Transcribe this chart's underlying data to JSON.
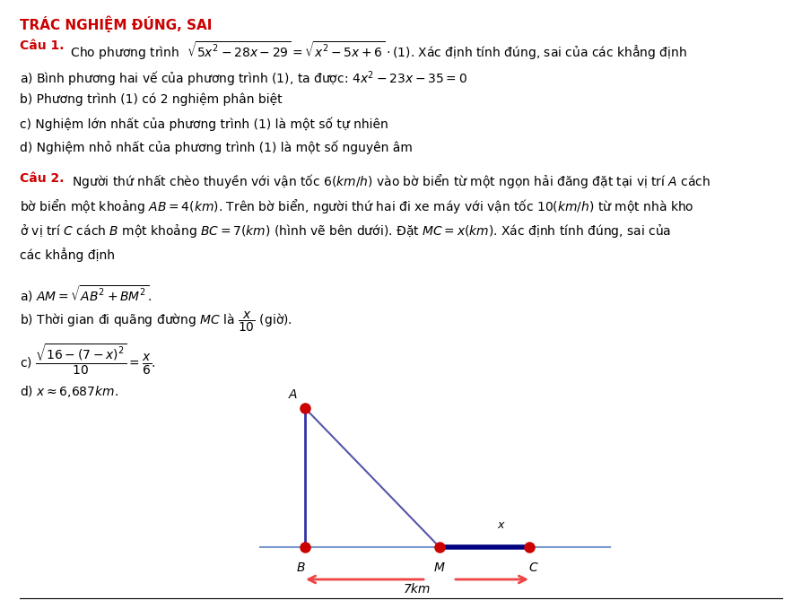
{
  "title": "TRÁC NGHIỆM ĐÚNG, SAI",
  "title_color": "#CC0000",
  "title_fontsize": 11,
  "bg_color": "#FFFFFF",
  "body_fontsize": 10,
  "red_label_color": "#CC0000",
  "câu1_label": "Câu 1.",
  "câu1_text": " Cho phương trình  $\\sqrt{5x^2-28x-29}=\\sqrt{x^2-5x+6}\\cdot(1)$. Xác định tính đúng, sai của các khẳng định",
  "câu1_a": "a) Bình phương hai vế của phương trình (1), ta được: $4x^2-23x-35=0$",
  "câu1_b": "b) Phương trình (1) có 2 nghiệm phân biệt",
  "câu1_c": "c) Nghiệm lớn nhất của phương trình (1) là một số tự nhiên",
  "câu1_d": "d) Nghiệm nhỏ nhất của phương trình (1) là một số nguyên âm",
  "câu2_label": "Câu 2.",
  "câu2_text1": " Người thứ nhất chèo thuyền với vận tốc $6(km/h)$ vào bờ biển từ một ngọn hải đăng đặt tại vị trí $A$ cách",
  "câu2_text2": "bờ biển một khoảng $AB=4(km)$. Trên bờ biển, người thứ hai đi xe máy với vận tốc $10(km/h)$ từ một nhà kho",
  "câu2_text3": "ở vị trí $C$ cách $B$ một khoảng $BC=7(km)$ (hình vẽ bên dưới). Đặt $MC=x(km)$. Xác định tính đúng, sai của",
  "câu2_text4": "các khẳng định",
  "câu2_a": "a) $AM=\\sqrt{AB^2+BM^2}$.",
  "câu2_b": "b) Thời gian đi quãng đường $MC$ là $\\dfrac{x}{10}$ (giờ).",
  "câu2_c": "c) $\\dfrac{\\sqrt{16-(7-x)^2}}{10}=\\dfrac{x}{6}$.",
  "câu2_d": "d) $x\\approx 6{,}687km$.",
  "diagram": {
    "shore_color": "#7799CC",
    "ab_color": "#3333AA",
    "am_color": "#5555AA",
    "mc_color": "#000080",
    "dot_color": "#CC0000",
    "arrow_color": "#EE4444",
    "label_A": "A",
    "label_B": "B",
    "label_M": "M",
    "label_C": "C",
    "label_x": "x",
    "label_7km": "7km"
  }
}
